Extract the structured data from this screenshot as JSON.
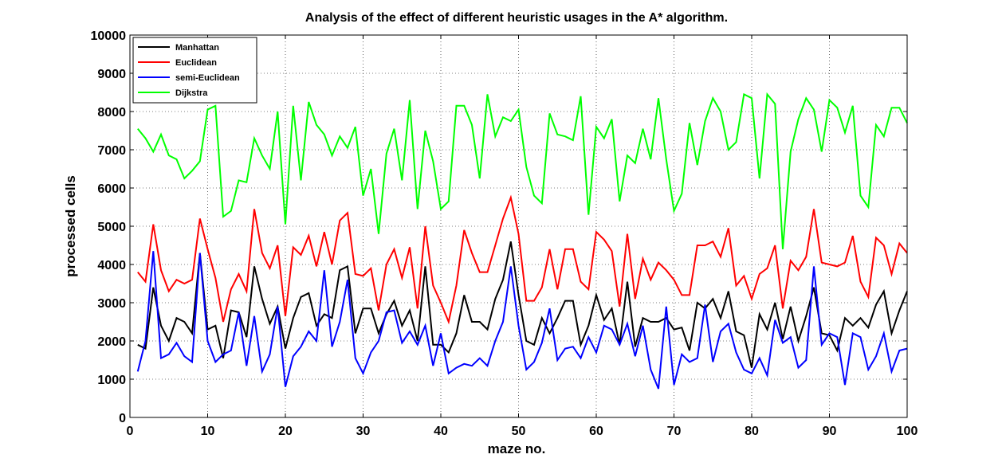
{
  "chart_data": {
    "type": "line",
    "title": "Analysis of the effect of different heuristic usages in the A* algorithm.",
    "xlabel": "maze no.",
    "ylabel": "processed cells",
    "xlim": [
      0,
      100
    ],
    "ylim": [
      0,
      10000
    ],
    "xticks": [
      0,
      10,
      20,
      30,
      40,
      50,
      60,
      70,
      80,
      90,
      100
    ],
    "yticks": [
      0,
      1000,
      2000,
      3000,
      4000,
      5000,
      6000,
      7000,
      8000,
      9000,
      10000
    ],
    "grid": true,
    "legend_position": "top-left",
    "x": [
      1,
      2,
      3,
      4,
      5,
      6,
      7,
      8,
      9,
      10,
      11,
      12,
      13,
      14,
      15,
      16,
      17,
      18,
      19,
      20,
      21,
      22,
      23,
      24,
      25,
      26,
      27,
      28,
      29,
      30,
      31,
      32,
      33,
      34,
      35,
      36,
      37,
      38,
      39,
      40,
      41,
      42,
      43,
      44,
      45,
      46,
      47,
      48,
      49,
      50,
      51,
      52,
      53,
      54,
      55,
      56,
      57,
      58,
      59,
      60,
      61,
      62,
      63,
      64,
      65,
      66,
      67,
      68,
      69,
      70,
      71,
      72,
      73,
      74,
      75,
      76,
      77,
      78,
      79,
      80,
      81,
      82,
      83,
      84,
      85,
      86,
      87,
      88,
      89,
      90,
      91,
      92,
      93,
      94,
      95,
      96,
      97,
      98,
      99,
      100
    ],
    "series": [
      {
        "name": "Manhattan",
        "color": "#000000",
        "values": [
          1900,
          1800,
          3400,
          2400,
          2000,
          2600,
          2500,
          2200,
          4300,
          2300,
          2400,
          1550,
          2800,
          2750,
          2100,
          3950,
          3100,
          2450,
          2900,
          1800,
          2600,
          3150,
          3250,
          2400,
          2700,
          2600,
          3850,
          3950,
          2200,
          2850,
          2850,
          2200,
          2700,
          3050,
          2400,
          2800,
          2000,
          3950,
          1900,
          1900,
          1700,
          2200,
          3200,
          2500,
          2500,
          2300,
          3100,
          3600,
          4600,
          3200,
          2000,
          1900,
          2600,
          2200,
          2600,
          3050,
          3050,
          1900,
          2400,
          3200,
          2550,
          2850,
          1900,
          3550,
          1850,
          2600,
          2500,
          2500,
          2600,
          2300,
          2350,
          1750,
          3000,
          2850,
          3100,
          2600,
          3300,
          2250,
          2150,
          1300,
          2700,
          2300,
          3000,
          2050,
          2900,
          2000,
          2650,
          3400,
          2200,
          2150,
          1750,
          2600,
          2400,
          2600,
          2350,
          2950,
          3300,
          2200,
          2800,
          3300
        ]
      },
      {
        "name": "Euclidean",
        "color": "#ff0000",
        "values": [
          3800,
          3550,
          5050,
          3850,
          3300,
          3600,
          3500,
          3600,
          5200,
          4400,
          3650,
          2500,
          3350,
          3750,
          3300,
          5450,
          4300,
          3900,
          4500,
          2650,
          4450,
          4250,
          4750,
          3950,
          4850,
          4000,
          5150,
          5350,
          3750,
          3700,
          3900,
          2800,
          4000,
          4400,
          3650,
          4450,
          2850,
          5000,
          3450,
          3000,
          2500,
          3450,
          4900,
          4300,
          3800,
          3800,
          4500,
          5200,
          5750,
          4800,
          3050,
          3050,
          3400,
          4400,
          3350,
          4400,
          4400,
          3550,
          3350,
          4850,
          4650,
          4350,
          2900,
          4800,
          3100,
          4150,
          3600,
          4050,
          3850,
          3600,
          3200,
          3200,
          4500,
          4500,
          4600,
          4200,
          4950,
          3450,
          3700,
          3100,
          3750,
          3900,
          4500,
          2850,
          4100,
          3850,
          4200,
          5450,
          4050,
          4000,
          3950,
          4050,
          4750,
          3550,
          3150,
          4700,
          4500,
          3750,
          4550,
          4300
        ]
      },
      {
        "name": "semi-Euclidean",
        "color": "#0000ff",
        "values": [
          1200,
          2000,
          4350,
          1550,
          1650,
          1950,
          1600,
          1450,
          4300,
          2000,
          1450,
          1650,
          1750,
          2750,
          1350,
          2650,
          1200,
          1650,
          2900,
          800,
          1600,
          1850,
          2250,
          2000,
          3850,
          1850,
          2500,
          3600,
          1550,
          1150,
          1700,
          2000,
          2750,
          2800,
          1950,
          2250,
          1900,
          2400,
          1350,
          2200,
          1150,
          1300,
          1400,
          1350,
          1550,
          1350,
          2000,
          2500,
          3950,
          2400,
          1250,
          1450,
          1950,
          2850,
          1500,
          1800,
          1850,
          1550,
          2100,
          1700,
          2400,
          2300,
          1900,
          2450,
          1600,
          2400,
          1250,
          750,
          2900,
          850,
          1650,
          1450,
          1550,
          2950,
          1450,
          2250,
          2450,
          1700,
          1250,
          1150,
          1550,
          1100,
          2550,
          1950,
          2100,
          1300,
          1500,
          3950,
          1900,
          2200,
          2100,
          850,
          2200,
          2100,
          1250,
          1600,
          2200,
          1200,
          1750,
          1800
        ]
      },
      {
        "name": "Dijkstra",
        "color": "#00ff00",
        "values": [
          7550,
          7300,
          6950,
          7400,
          6850,
          6750,
          6250,
          6450,
          6700,
          8050,
          8150,
          5250,
          5400,
          6200,
          6150,
          7300,
          6850,
          6500,
          8000,
          5050,
          8150,
          6200,
          8250,
          7650,
          7400,
          6850,
          7350,
          7050,
          7600,
          5800,
          6500,
          4800,
          6900,
          7550,
          6200,
          8300,
          5450,
          7500,
          6700,
          5450,
          5650,
          8150,
          8150,
          7650,
          6250,
          8450,
          7350,
          7850,
          7750,
          8050,
          6550,
          5800,
          5600,
          7950,
          7400,
          7350,
          7250,
          8400,
          5300,
          7600,
          7300,
          7800,
          5650,
          6850,
          6650,
          7550,
          6750,
          8350,
          6750,
          5400,
          5850,
          7700,
          6600,
          7750,
          8350,
          8000,
          7000,
          7200,
          8450,
          8350,
          6250,
          8450,
          8200,
          4400,
          6950,
          7800,
          8350,
          8050,
          6950,
          8300,
          8100,
          7450,
          8150,
          5800,
          5500,
          7650,
          7350,
          8100,
          8100,
          7700
        ]
      }
    ]
  }
}
